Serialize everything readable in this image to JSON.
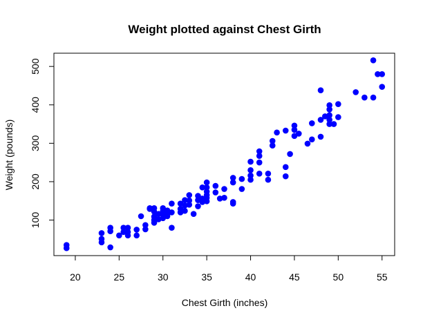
{
  "chart_data": {
    "type": "scatter",
    "title": "Weight plotted against Chest Girth",
    "x_label": "Chest Girth (inches)",
    "y_label": "Weight (pounds)",
    "color": "#0000ff",
    "xlim": [
      17.56,
      56.44
    ],
    "ylim": [
      7.5,
      534.5
    ],
    "xticks": [
      20,
      25,
      30,
      35,
      40,
      45,
      50,
      55
    ],
    "yticks": [
      100,
      200,
      300,
      400,
      500
    ],
    "x": [
      19,
      19,
      23,
      23,
      23,
      24,
      24,
      24,
      25,
      25.5,
      25.5,
      26,
      26,
      26,
      27,
      27,
      27.5,
      28,
      28,
      28.5,
      28.5,
      29,
      29,
      29,
      29,
      29,
      29.5,
      29.5,
      30,
      30,
      30,
      30,
      30.5,
      30.5,
      30.5,
      31,
      31,
      31,
      32,
      32,
      32,
      32.5,
      32.5,
      32.5,
      33,
      33,
      33,
      33.5,
      34,
      34,
      34,
      34.5,
      34.5,
      34.5,
      35,
      35,
      35,
      35,
      35,
      35,
      36,
      36,
      36.5,
      37,
      37,
      38,
      38,
      38,
      38,
      39,
      39,
      40,
      40,
      40,
      40,
      41,
      41,
      41,
      41,
      42,
      42,
      42.5,
      42.5,
      43,
      44,
      44,
      44,
      44.5,
      45,
      45,
      45,
      45.5,
      46.5,
      47,
      47,
      48,
      48,
      48,
      48.5,
      49,
      49,
      49,
      49,
      49,
      49.5,
      50,
      50,
      52,
      53,
      54,
      54,
      54.5,
      55,
      55
    ],
    "values": [
      35,
      27,
      66,
      51,
      42,
      80,
      71,
      29,
      60,
      80,
      69,
      80,
      60,
      69,
      75,
      60,
      110,
      87,
      76,
      131,
      129,
      131,
      122,
      109,
      100,
      93,
      116,
      102,
      131,
      124,
      115,
      105,
      116,
      110,
      125,
      143,
      120,
      80,
      143,
      129,
      120,
      152,
      138,
      124,
      165,
      151,
      140,
      116,
      152,
      136,
      163,
      185,
      156,
      147,
      198,
      185,
      174,
      165,
      158,
      149,
      189,
      172,
      156,
      181,
      158,
      210,
      198,
      147,
      143,
      207,
      181,
      252,
      230,
      216,
      205,
      279,
      267,
      250,
      221,
      221,
      205,
      306,
      294,
      328,
      333,
      238,
      214,
      272,
      346,
      335,
      319,
      325,
      299,
      352,
      310,
      438,
      361,
      317,
      370,
      399,
      388,
      373,
      361,
      350,
      350,
      402,
      368,
      433,
      419,
      516,
      419,
      480,
      480,
      447
    ]
  }
}
